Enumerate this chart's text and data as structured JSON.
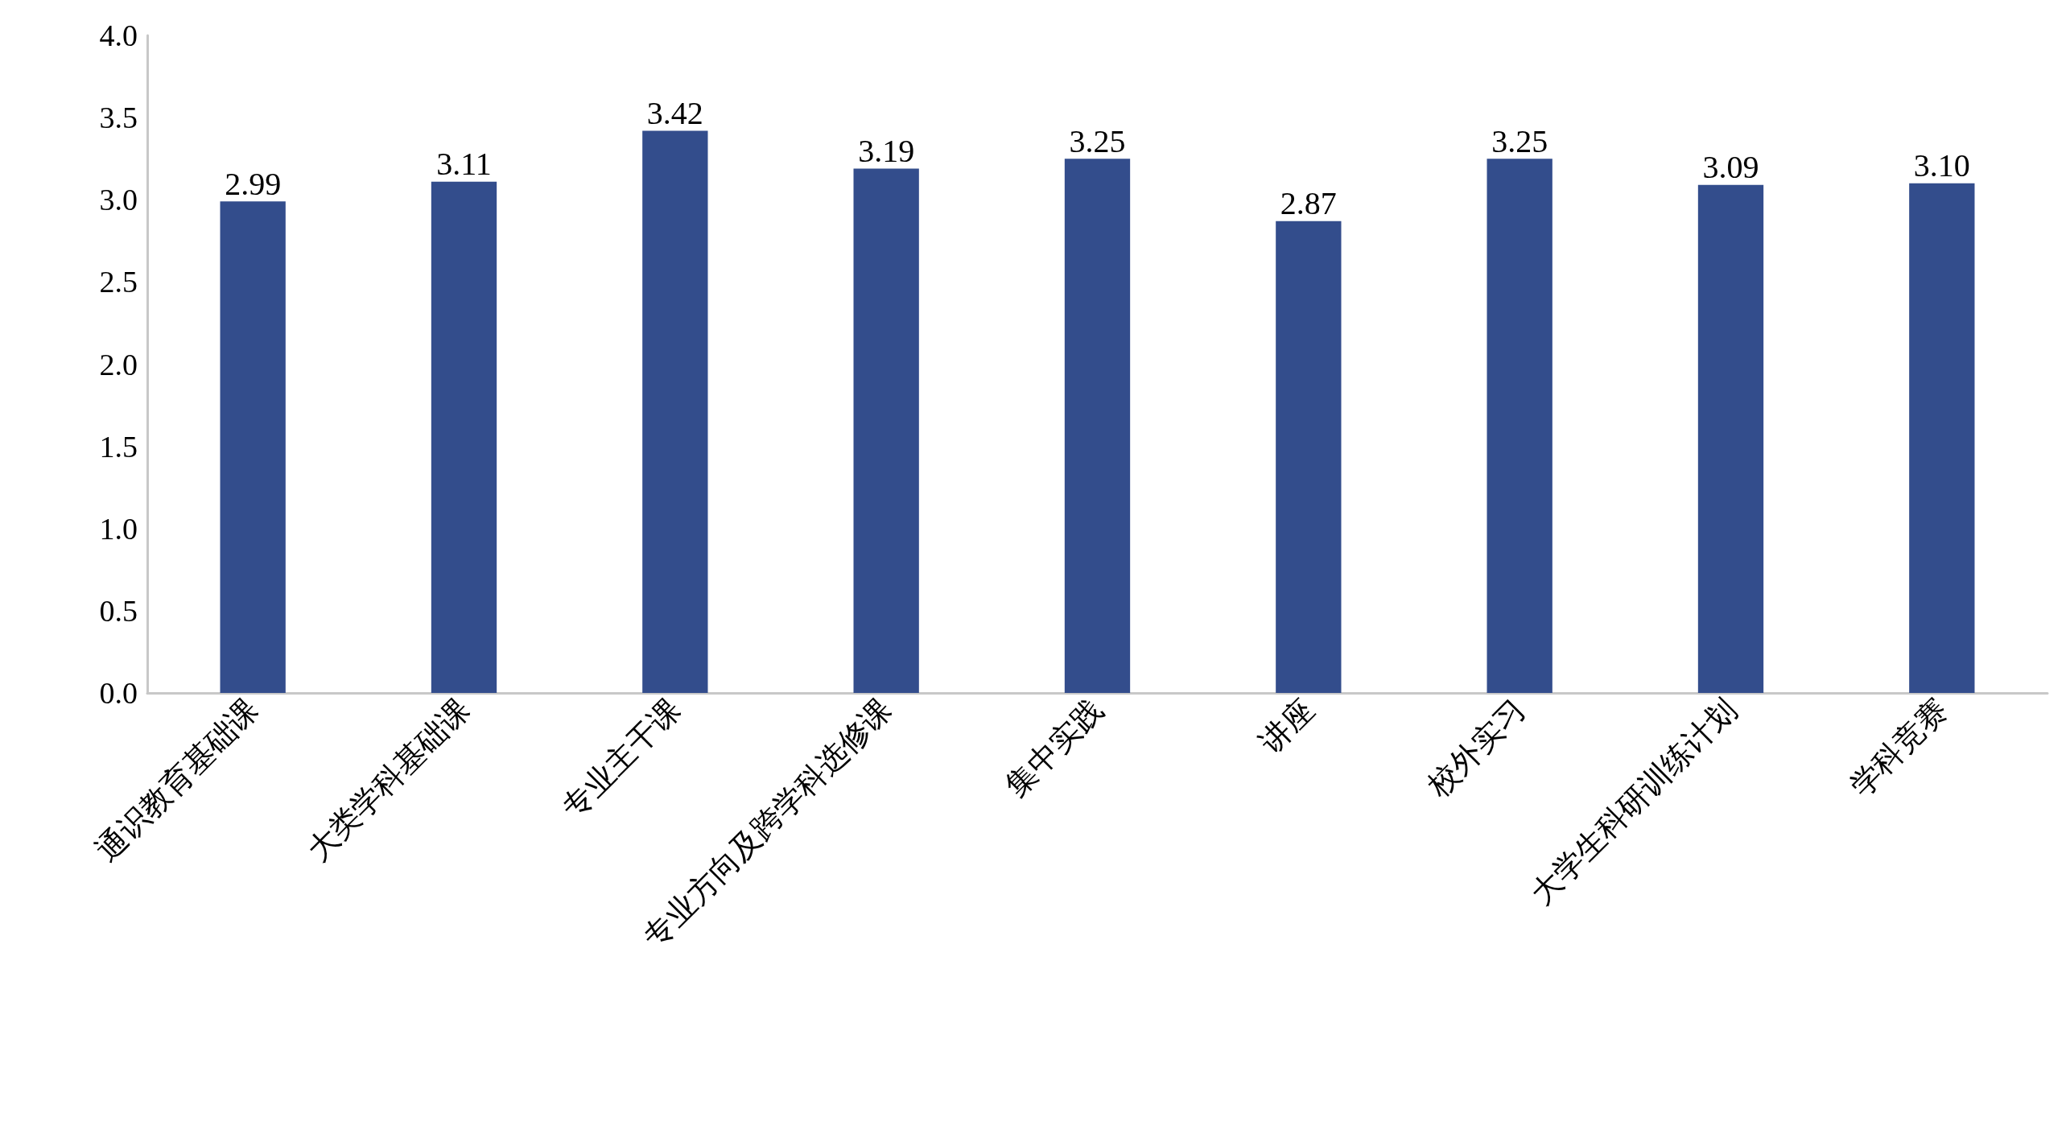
{
  "chart_data": {
    "type": "bar",
    "categories": [
      "通识教育基础课",
      "大类学科基础课",
      "专业主干课",
      "专业方向及跨学科选修课",
      "集中实践",
      "讲座",
      "校外实习",
      "大学生科研训练计划",
      "学科竞赛"
    ],
    "values": [
      2.99,
      3.11,
      3.42,
      3.19,
      3.25,
      2.87,
      3.25,
      3.09,
      3.1
    ],
    "value_labels": [
      "2.99",
      "3.11",
      "3.42",
      "3.19",
      "3.25",
      "2.87",
      "3.25",
      "3.09",
      "3.10"
    ],
    "color": "#334d8c",
    "ylim": [
      0,
      4
    ],
    "yticks": [
      {
        "value": 0,
        "label": "0.0"
      },
      {
        "value": 0.5,
        "label": "0.5"
      },
      {
        "value": 1,
        "label": "1.0"
      },
      {
        "value": 1.5,
        "label": "1.5"
      },
      {
        "value": 2,
        "label": "2.0"
      },
      {
        "value": 2.5,
        "label": "2.5"
      },
      {
        "value": 3,
        "label": "3.0"
      },
      {
        "value": 3.5,
        "label": "3.5"
      },
      {
        "value": 4,
        "label": "4.0"
      }
    ]
  }
}
